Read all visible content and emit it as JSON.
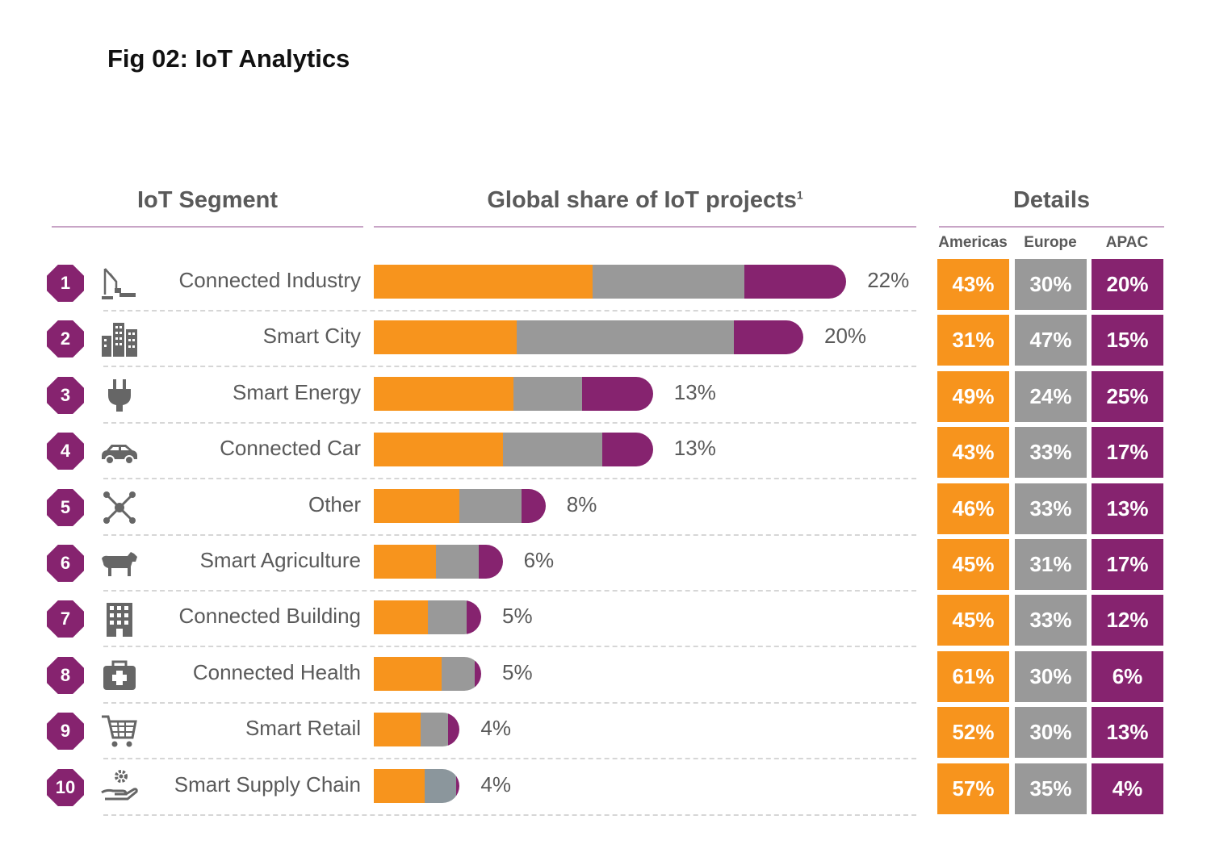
{
  "title": "Fig 02: IoT Analytics",
  "headers": {
    "segment": "IoT Segment",
    "share": "Global share of IoT projects",
    "share_sup": "1",
    "details": "Details",
    "americas": "Americas",
    "europe": "Europe",
    "apac": "APAC"
  },
  "colors": {
    "americas": "#f7941d",
    "europe": "#999999",
    "apac": "#86236f",
    "supply_chain_europe": "#8b969c"
  },
  "chart_data": {
    "type": "bar",
    "orientation": "horizontal",
    "stacked": true,
    "categories": [
      "Connected Industry",
      "Smart City",
      "Smart Energy",
      "Connected Car",
      "Other",
      "Smart Agriculture",
      "Connected Building",
      "Connected Health",
      "Smart Retail",
      "Smart Supply Chain"
    ],
    "ranks": [
      "1",
      "2",
      "3",
      "4",
      "5",
      "6",
      "7",
      "8",
      "9",
      "10"
    ],
    "icons": [
      "crane-icon",
      "city-icon",
      "plug-icon",
      "car-icon",
      "network-icon",
      "cow-icon",
      "building-icon",
      "medical-kit-icon",
      "cart-icon",
      "gear-hand-icon"
    ],
    "global_share": [
      22,
      20,
      13,
      13,
      8,
      6,
      5,
      5,
      4,
      4
    ],
    "global_share_labels": [
      "22%",
      "20%",
      "13%",
      "13%",
      "8%",
      "6%",
      "5%",
      "5%",
      "4%",
      "4%"
    ],
    "series": [
      {
        "name": "Americas",
        "values": [
          43,
          31,
          49,
          43,
          46,
          45,
          45,
          61,
          52,
          57
        ],
        "labels": [
          "43%",
          "31%",
          "49%",
          "43%",
          "46%",
          "45%",
          "45%",
          "61%",
          "52%",
          "57%"
        ]
      },
      {
        "name": "Europe",
        "values": [
          30,
          47,
          24,
          33,
          33,
          31,
          33,
          30,
          30,
          35
        ],
        "labels": [
          "30%",
          "47%",
          "24%",
          "33%",
          "33%",
          "31%",
          "33%",
          "30%",
          "30%",
          "35%"
        ]
      },
      {
        "name": "APAC",
        "values": [
          20,
          15,
          25,
          17,
          13,
          17,
          12,
          6,
          13,
          4
        ],
        "labels": [
          "20%",
          "15%",
          "25%",
          "17%",
          "13%",
          "17%",
          "12%",
          "6%",
          "13%",
          "4%"
        ]
      }
    ]
  }
}
